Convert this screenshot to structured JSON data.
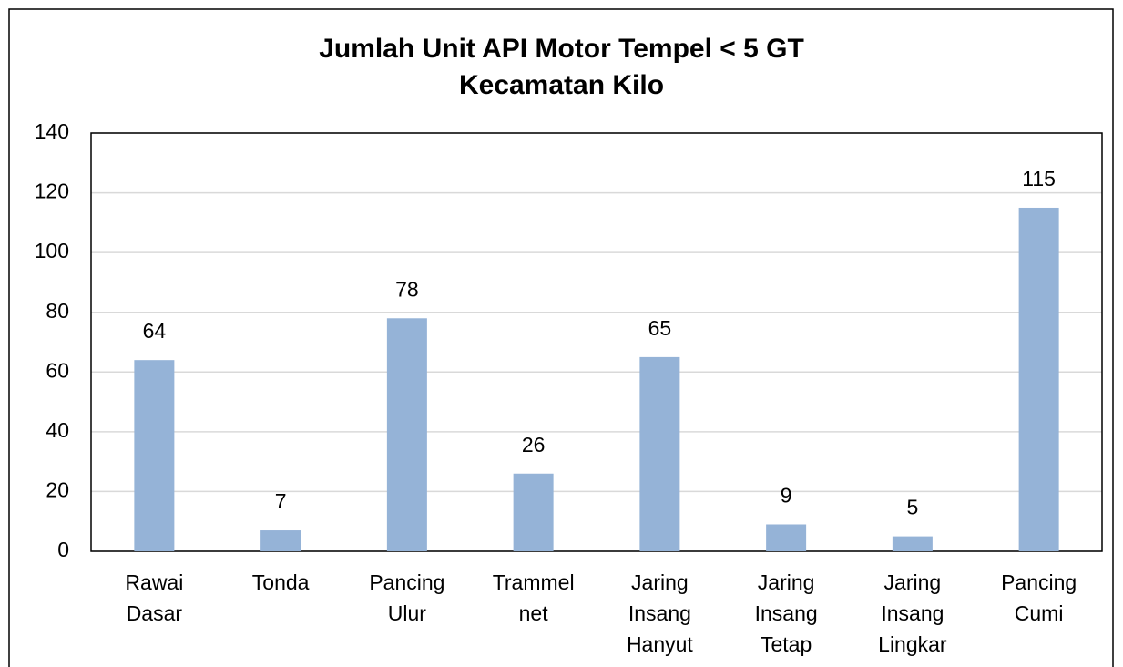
{
  "chart_data": {
    "type": "bar",
    "title": [
      "Jumlah Unit API Motor Tempel < 5 GT",
      "Kecamatan Kilo"
    ],
    "categories": [
      "Rawai Dasar",
      "Tonda",
      "Pancing Ulur",
      "Trammel net",
      "Jaring Insang Hanyut",
      "Jaring Insang Tetap",
      "Jaring Insang Lingkar",
      "Pancing Cumi"
    ],
    "values": [
      64,
      7,
      78,
      26,
      65,
      9,
      5,
      115
    ],
    "color": "#95b3d7",
    "ylim": [
      0,
      140
    ],
    "yticks": [
      0,
      20,
      40,
      60,
      80,
      100,
      120,
      140
    ],
    "grid": true
  }
}
